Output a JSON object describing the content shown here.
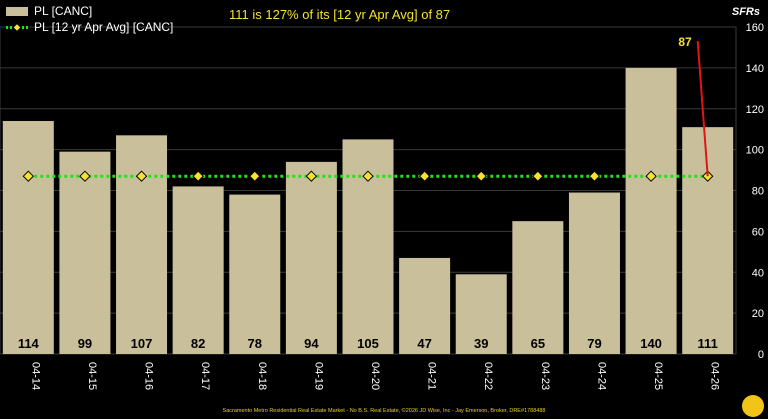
{
  "header": {
    "headline": "111 is 127% of its [12 yr Apr Avg] of 87",
    "unit_label": "SFRs"
  },
  "legend": {
    "bar_label": "PL [CANC]",
    "line_label": "PL [12 yr Apr Avg] [CANC]"
  },
  "footer": {
    "credit": "Sacramento Metro Residential Real Estate Market - No B.S. Real Estate, ©2026 JD Wise, Inc - Jay Emerson, Broker, DRE#1788488"
  },
  "colors": {
    "bar": "#c9bf9b",
    "avg_line": "#22e01e",
    "marker": "#f5e132",
    "callout": "#e01515",
    "callout_text": "#f5e132"
  },
  "chart_data": {
    "type": "bar",
    "categories": [
      "04-14",
      "04-15",
      "04-16",
      "04-17",
      "04-18",
      "04-19",
      "04-20",
      "04-21",
      "04-22",
      "04-23",
      "04-24",
      "04-25",
      "04-26"
    ],
    "series": [
      {
        "name": "PL [CANC]",
        "values": [
          114,
          99,
          107,
          82,
          78,
          94,
          105,
          47,
          39,
          65,
          79,
          140,
          111
        ]
      },
      {
        "name": "PL [12 yr Apr Avg] [CANC]",
        "values": [
          87,
          87,
          87,
          87,
          87,
          87,
          87,
          87,
          87,
          87,
          87,
          87,
          87
        ]
      }
    ],
    "data_labels": [
      "114",
      "99",
      "107",
      "82",
      "78",
      "94",
      "105",
      "47",
      "39",
      "65",
      "79",
      "140",
      "111"
    ],
    "callout": {
      "label": "87",
      "target_category": "04-26"
    },
    "ylabel": "SFRs",
    "ylim": [
      0,
      160
    ],
    "yticks": [
      0,
      20,
      40,
      60,
      80,
      100,
      120,
      140,
      160
    ],
    "y_axis_side": "right",
    "grid": true,
    "legend_position": "top-left"
  }
}
